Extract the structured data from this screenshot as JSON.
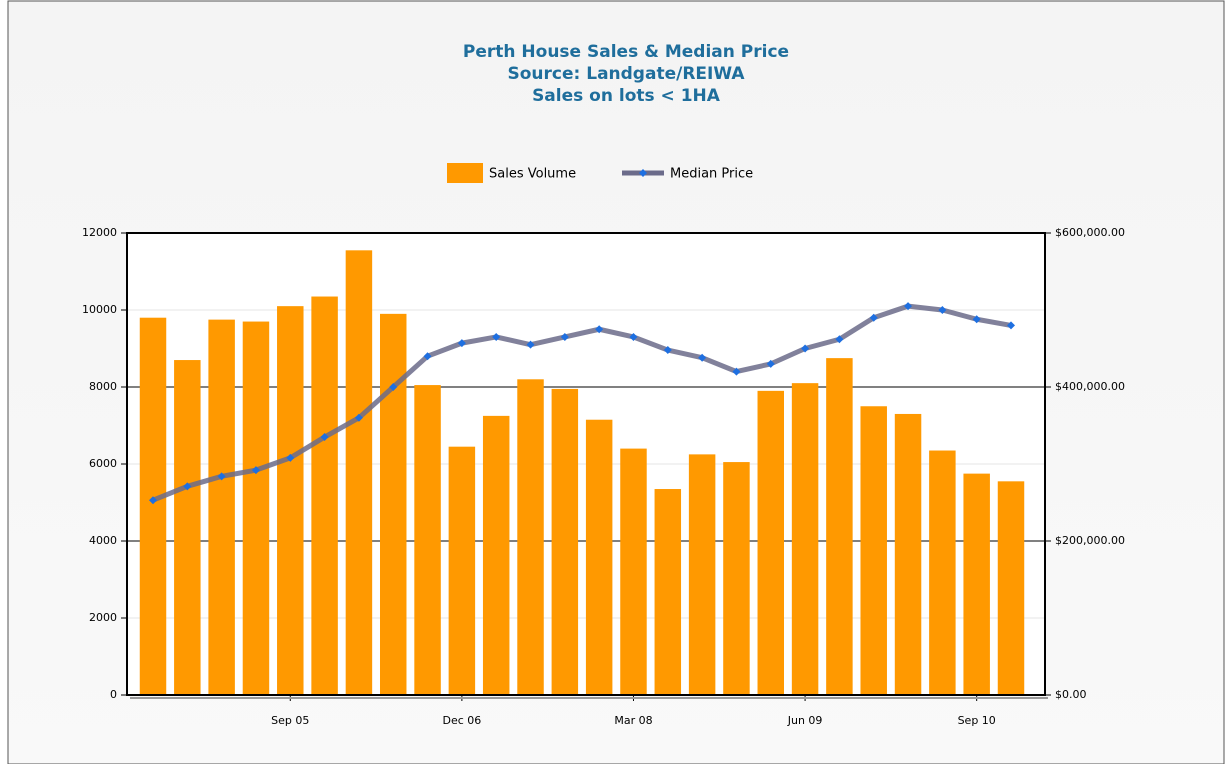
{
  "chart_data": {
    "type": "bar_line",
    "title": "Perth House Sales & Median Price",
    "subtitle": [
      "Source: Landgate/REIWA",
      "Sales on lots < 1HA"
    ],
    "categories": [
      null,
      null,
      null,
      null,
      "Sep 05",
      null,
      null,
      null,
      null,
      "Dec 06",
      null,
      null,
      null,
      null,
      "Mar 08",
      null,
      null,
      null,
      null,
      "Jun 09",
      null,
      null,
      null,
      null,
      "Sep 10",
      null
    ],
    "series": [
      {
        "name": "Sales Volume",
        "type": "bar",
        "color": "#ff9900",
        "values": [
          9800,
          8700,
          9750,
          9700,
          10100,
          10350,
          11550,
          9900,
          8050,
          6450,
          7250,
          8200,
          7950,
          7150,
          6400,
          5350,
          6250,
          6050,
          7900,
          8100,
          8750,
          7500,
          7300,
          6350,
          5750,
          5550
        ]
      },
      {
        "name": "Median Price",
        "type": "line",
        "axis": "y2",
        "color": "#6b6b8a",
        "marker_color": "#1e6fe0",
        "values": [
          253000,
          271000,
          284000,
          292000,
          308000,
          335000,
          360000,
          400000,
          440000,
          457000,
          465000,
          455000,
          465000,
          475000,
          465000,
          448000,
          438000,
          420000,
          430000,
          450000,
          462000,
          490000,
          505000,
          500000,
          488000,
          480000
        ]
      }
    ],
    "ylim": [
      0,
      12000
    ],
    "yticks": [
      0,
      2000,
      4000,
      6000,
      8000,
      10000,
      12000
    ],
    "y2lim": [
      0,
      600000
    ],
    "y2ticks": [
      {
        "value": 0,
        "label": "$0.00"
      },
      {
        "value": 200000,
        "label": "$200,000.00"
      },
      {
        "value": 400000,
        "label": "$400,000.00"
      },
      {
        "value": 600000,
        "label": "$600,000.00"
      }
    ],
    "grid": true,
    "legend": "top"
  }
}
